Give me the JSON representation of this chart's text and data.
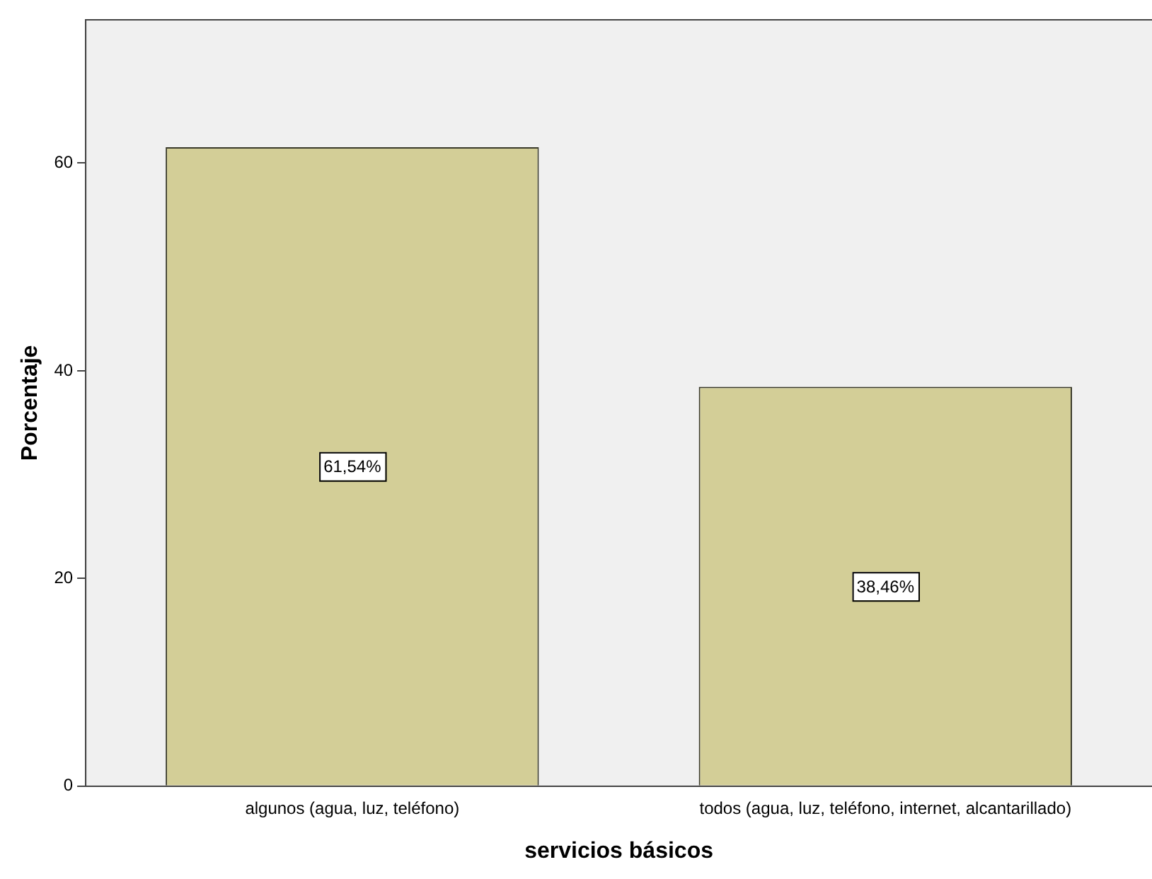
{
  "chart_data": {
    "type": "bar",
    "xlabel": "servicios básicos",
    "ylabel": "Porcentaje",
    "categories": [
      "algunos (agua, luz, teléfono)",
      "todos (agua, luz, teléfono, internet, alcantarillado)"
    ],
    "values": [
      61.54,
      38.46
    ],
    "color": "#d3ce97",
    "value_labels": [
      "61,54%",
      "38,46%"
    ],
    "ylim": [
      0,
      73.8
    ],
    "yticks": [
      0,
      20,
      40,
      60
    ],
    "grid": false,
    "legend": false
  }
}
